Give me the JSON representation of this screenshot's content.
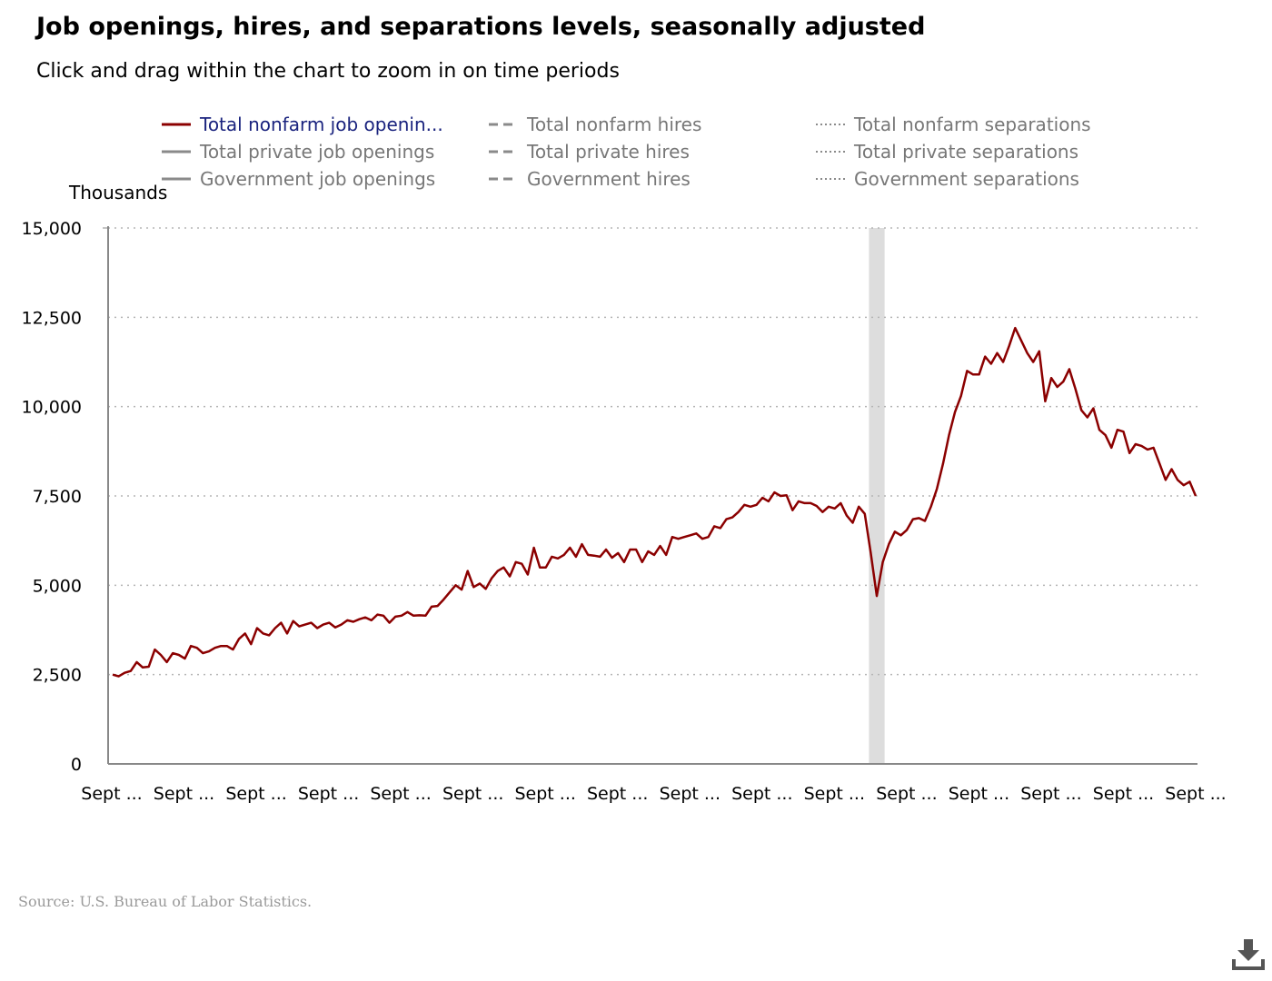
{
  "page": {
    "title": "Job openings, hires, and separations levels, seasonally adjusted",
    "subtitle": "Click and drag within the chart to zoom in on time periods",
    "source": "Source: U.S. Bureau of Labor Statistics.",
    "download_icon": "download-icon"
  },
  "legend": {
    "items": [
      {
        "label": "Total nonfarm job openin...",
        "style": "solid",
        "color": "#8b0000",
        "active": true
      },
      {
        "label": "Total nonfarm hires",
        "style": "dashed",
        "color": "#8a8a8a",
        "active": false
      },
      {
        "label": "Total nonfarm separations",
        "style": "dotted",
        "color": "#8a8a8a",
        "active": false
      },
      {
        "label": "Total private job openings",
        "style": "solid",
        "color": "#8a8a8a",
        "active": false
      },
      {
        "label": "Total private hires",
        "style": "dashed",
        "color": "#8a8a8a",
        "active": false
      },
      {
        "label": "Total private separations",
        "style": "dotted",
        "color": "#8a8a8a",
        "active": false
      },
      {
        "label": "Government job openings",
        "style": "solid",
        "color": "#8a8a8a",
        "active": false
      },
      {
        "label": "Government hires",
        "style": "dashed",
        "color": "#8a8a8a",
        "active": false
      },
      {
        "label": "Government separations",
        "style": "dotted",
        "color": "#8a8a8a",
        "active": false
      }
    ]
  },
  "chart_data": {
    "type": "line",
    "title": "Job openings, hires, and separations levels, seasonally adjusted",
    "subtitle": "Click and drag within the chart to zoom in on time periods",
    "ylabel": "Thousands",
    "xlabel": "",
    "ylim": [
      0,
      15000
    ],
    "yticks": [
      "0",
      "2,500",
      "5,000",
      "7,500",
      "10,000",
      "12,500",
      "15,000"
    ],
    "ytick_values": [
      0,
      2500,
      5000,
      7500,
      10000,
      12500,
      15000
    ],
    "xticks": [
      "Sept ...",
      "Sept ...",
      "Sept ...",
      "Sept ...",
      "Sept ...",
      "Sept ...",
      "Sept ...",
      "Sept ...",
      "Sept ...",
      "Sept ...",
      "Sept ...",
      "Sept ...",
      "Sept ...",
      "Sept ...",
      "Sept ...",
      "Sept ..."
    ],
    "grid": "horizontal-dotted",
    "recession_band": {
      "start_index": 126,
      "end_index": 128
    },
    "series": [
      {
        "name": "Total nonfarm job openin...",
        "color": "#8b0000",
        "values": [
          2500,
          2450,
          2550,
          2600,
          2850,
          2700,
          2720,
          3200,
          3050,
          2850,
          3100,
          3050,
          2950,
          3300,
          3250,
          3100,
          3150,
          3250,
          3300,
          3300,
          3200,
          3500,
          3650,
          3350,
          3800,
          3650,
          3600,
          3800,
          3950,
          3650,
          4000,
          3850,
          3900,
          3950,
          3800,
          3900,
          3950,
          3820,
          3900,
          4020,
          3980,
          4050,
          4100,
          4020,
          4180,
          4150,
          3950,
          4120,
          4150,
          4250,
          4150,
          4160,
          4150,
          4400,
          4420,
          4600,
          4800,
          5000,
          4880,
          5400,
          4950,
          5050,
          4900,
          5200,
          5400,
          5500,
          5250,
          5650,
          5600,
          5300,
          6050,
          5500,
          5500,
          5800,
          5750,
          5850,
          6050,
          5800,
          6150,
          5850,
          5830,
          5800,
          6000,
          5770,
          5900,
          5650,
          6000,
          6000,
          5650,
          5950,
          5850,
          6100,
          5850,
          6350,
          6300,
          6350,
          6400,
          6450,
          6300,
          6350,
          6650,
          6600,
          6850,
          6900,
          7050,
          7250,
          7200,
          7250,
          7450,
          7350,
          7600,
          7500,
          7520,
          7100,
          7350,
          7300,
          7300,
          7220,
          7050,
          7200,
          7150,
          7300,
          6950,
          6750,
          7200,
          7000,
          5900,
          4700,
          5650,
          6150,
          6500,
          6400,
          6550,
          6850,
          6880,
          6800,
          7200,
          7700,
          8400,
          9200,
          9850,
          10300,
          11000,
          10900,
          10900,
          11400,
          11200,
          11500,
          11250,
          11700,
          12200,
          11850,
          11500,
          11250,
          11550,
          10150,
          10800,
          10550,
          10700,
          11050,
          10500,
          9900,
          9700,
          9950,
          9350,
          9200,
          8850,
          9350,
          9300,
          8700,
          8950,
          8900,
          8800,
          8850,
          8400,
          7950,
          8250,
          7950,
          7800,
          7900,
          7500
        ]
      }
    ]
  }
}
